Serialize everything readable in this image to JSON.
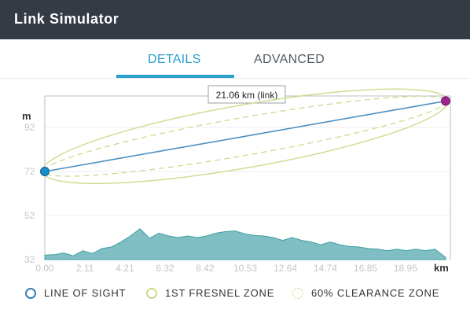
{
  "window": {
    "title": "Link Simulator"
  },
  "tabs": [
    {
      "label": "DETAILS",
      "active": true
    },
    {
      "label": "ADVANCED",
      "active": false
    }
  ],
  "colors": {
    "accent": "#2a9fcb",
    "line_of_sight": "#4a90c4",
    "fresnel": "#c8dc8a",
    "terrain_fill": "#7fbfc3",
    "terrain_stroke": "#3f9ea4",
    "endpoint_a": "#1a8fc7",
    "endpoint_b": "#a0248f"
  },
  "chart_data": {
    "type": "area",
    "distance_label": "21.06 km (link)",
    "xlabel": "km",
    "ylabel": "m",
    "xlim": [
      0,
      21.06
    ],
    "ylim": [
      32,
      112
    ],
    "x_ticks": [
      "0.00",
      "2.11",
      "4.21",
      "6.32",
      "8.42",
      "10.53",
      "12.64",
      "14.74",
      "16.85",
      "18.95"
    ],
    "y_ticks": [
      "92",
      "72",
      "52",
      "32"
    ],
    "line_of_sight": {
      "start": [
        0,
        72
      ],
      "end": [
        21.06,
        104
      ]
    },
    "terrain": {
      "x": [
        0,
        0.5,
        1.0,
        1.5,
        2.0,
        2.5,
        3.0,
        3.5,
        4.0,
        4.5,
        5.0,
        5.5,
        6.0,
        6.5,
        7.0,
        7.5,
        8.0,
        8.5,
        9.0,
        9.5,
        10.0,
        10.5,
        11.0,
        11.5,
        12.0,
        12.5,
        13.0,
        13.5,
        14.0,
        14.5,
        15.0,
        15.5,
        16.0,
        16.5,
        17.0,
        17.5,
        18.0,
        18.5,
        19.0,
        19.5,
        20.0,
        20.5,
        21.06
      ],
      "y": [
        34,
        34.5,
        35,
        34,
        36,
        35,
        37,
        38,
        40,
        43,
        46,
        42,
        44,
        43,
        42,
        43,
        42,
        43,
        44,
        45,
        45,
        44,
        43,
        43,
        42,
        41,
        42,
        41,
        40,
        39,
        40,
        39,
        38,
        38,
        37,
        37,
        36,
        37,
        36,
        37,
        36,
        37,
        33
      ]
    }
  },
  "legend": [
    {
      "label": "LINE OF SIGHT",
      "icon": "circle-outline-icon"
    },
    {
      "label": "1ST FRESNEL ZONE",
      "icon": "circle-outline-icon"
    },
    {
      "label": "60% CLEARANCE ZONE",
      "icon": "dashed-circle-icon"
    }
  ]
}
